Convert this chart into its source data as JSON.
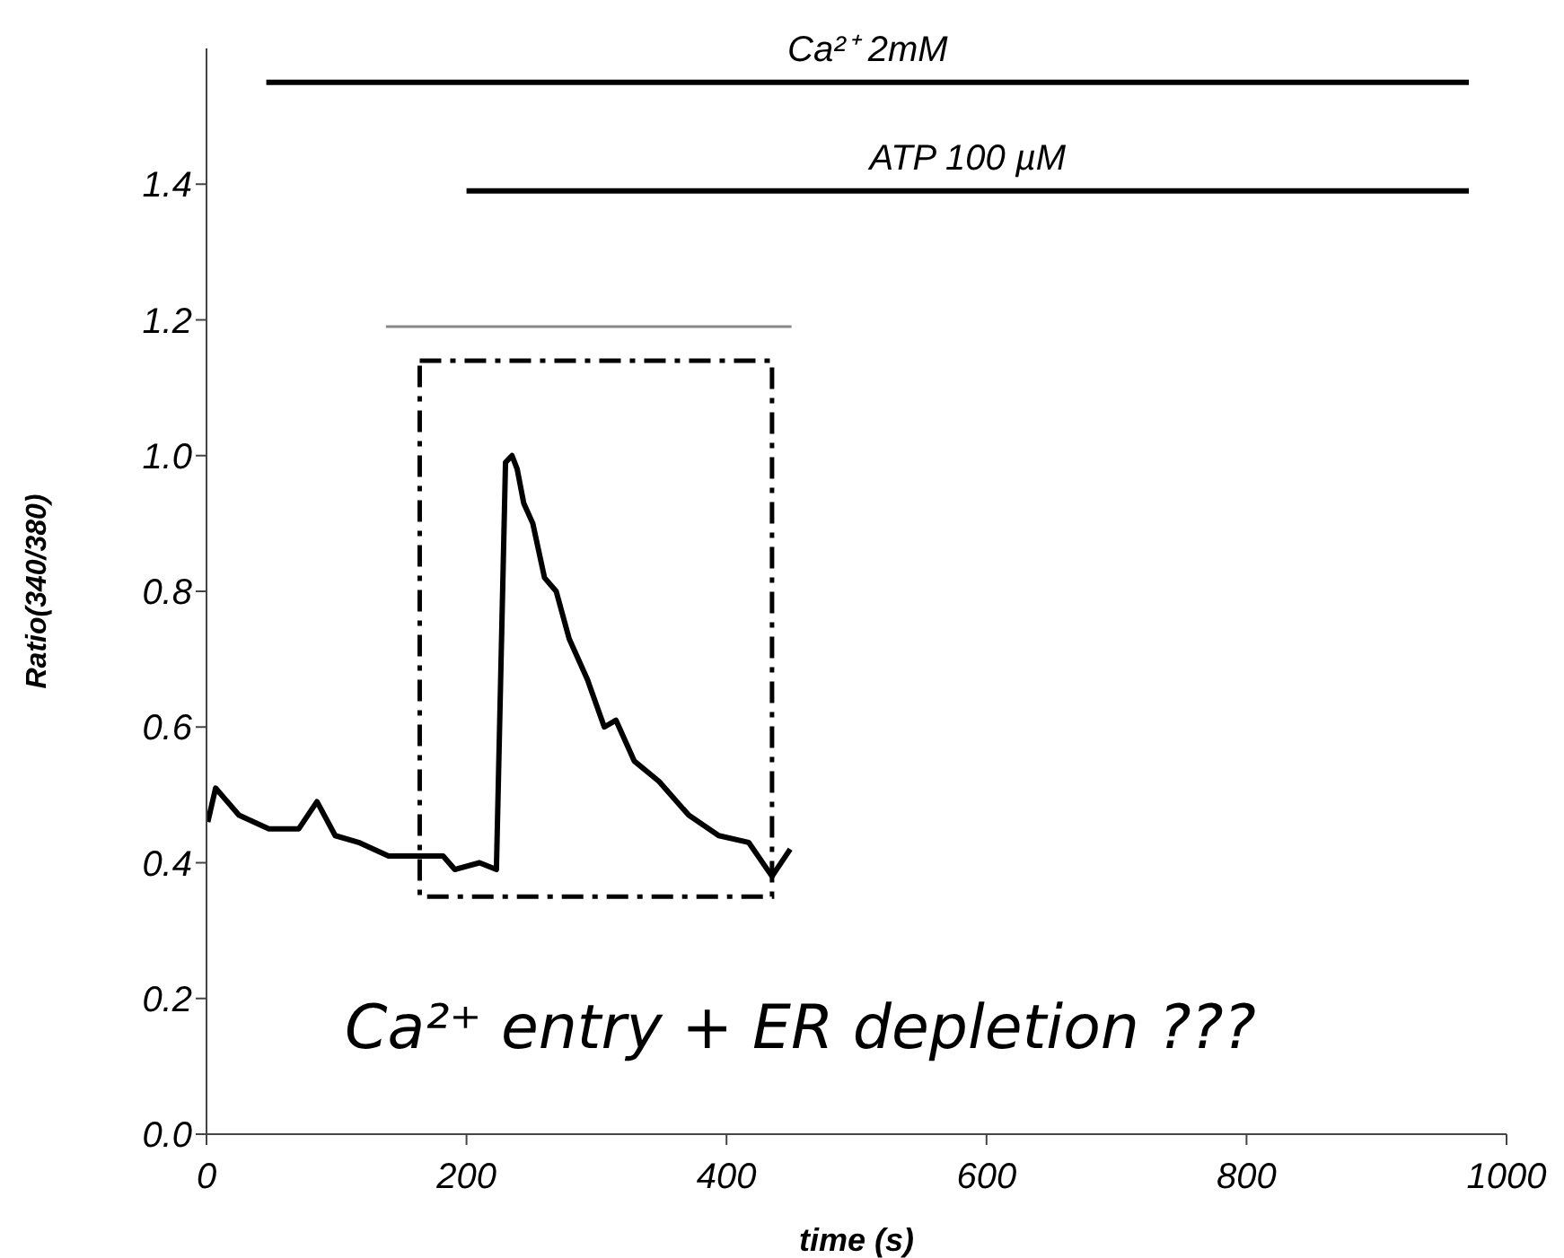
{
  "chart_data": {
    "type": "line",
    "xlabel": "time (s)",
    "ylabel": "Ratio(340/380)",
    "xlim": [
      0,
      1000
    ],
    "xticks": [
      0,
      200,
      400,
      600,
      800,
      1000
    ],
    "ylim": [
      0,
      1.6
    ],
    "yticks": [
      {
        "value": 0,
        "label": "0.0"
      },
      {
        "value": 0.2,
        "label": "0.2"
      },
      {
        "value": 0.4,
        "label": "0.4"
      },
      {
        "value": 0.6,
        "label": "0.6"
      },
      {
        "value": 0.8,
        "label": "0.8"
      },
      {
        "value": 1,
        "label": "1.0"
      },
      {
        "value": 1.2,
        "label": "1.2"
      },
      {
        "value": 1.4,
        "label": "1.4"
      }
    ],
    "grid": false,
    "legend": false,
    "marker": "none",
    "annotations": [
      "Ca²⁺ entry + ER depletion ???"
    ],
    "series": [
      {
        "color": "#000000",
        "x": [
          1,
          7,
          25,
          48,
          71,
          85,
          99,
          117,
          140,
          163,
          182,
          191,
          210,
          223,
          230,
          235,
          239,
          244,
          251,
          260,
          269,
          279,
          293,
          306,
          315,
          329,
          348,
          371,
          394,
          417,
          435,
          449
        ],
        "values": [
          0.46,
          0.51,
          0.47,
          0.45,
          0.45,
          0.49,
          0.44,
          0.43,
          0.41,
          0.41,
          0.41,
          0.39,
          0.4,
          0.39,
          0.99,
          1.0,
          0.98,
          0.93,
          0.9,
          0.82,
          0.8,
          0.73,
          0.67,
          0.6,
          0.61,
          0.55,
          0.52,
          0.47,
          0.44,
          0.43,
          0.38,
          0.42
        ]
      },
      {
        "name": "Ca²⁺ 2mM",
        "color": "#000000",
        "x": [
          46,
          971
        ],
        "values": [
          1.55,
          1.55
        ]
      },
      {
        "name": "ATP 100 µM",
        "color": "#000000",
        "x": [
          200,
          971
        ],
        "values": [
          1.39,
          1.39
        ]
      },
      {
        "color": "#888888",
        "x": [
          138,
          450
        ],
        "values": [
          1.19,
          1.19
        ]
      }
    ]
  }
}
